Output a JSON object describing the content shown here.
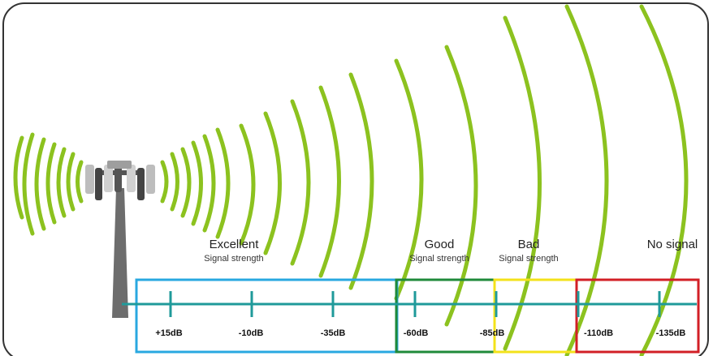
{
  "zones": [
    {
      "id": "excellent",
      "title": "Excellent",
      "subtitle": "Signal strength",
      "color": "#29a8e0"
    },
    {
      "id": "good",
      "title": "Good",
      "subtitle": "Signal strength",
      "color": "#1f8a3a"
    },
    {
      "id": "bad",
      "title": "Bad",
      "subtitle": "Signal strength",
      "color": "#f3e21a"
    },
    {
      "id": "no-signal",
      "title": "No signal",
      "subtitle": "",
      "color": "#d21f26"
    }
  ],
  "ticks": [
    "+15dB",
    "-10dB",
    "-35dB",
    "-60dB",
    "-85dB",
    "-110dB",
    "-135dB"
  ],
  "colors": {
    "wave": "#8cc21f",
    "axis": "#1f9a9a",
    "frame": "#333333",
    "tower": "#666666"
  },
  "icons": [
    "cell-tower-icon"
  ]
}
